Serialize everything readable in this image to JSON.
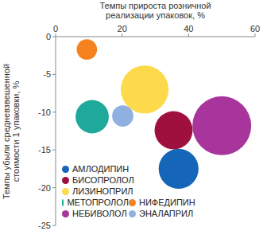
{
  "chart_data": {
    "type": "scatter",
    "x_label": "Темпы прироста розничной реализации упаковок, %",
    "y_label": "Темпы убыли средневзвешенной стоимости 1 упаковки, %",
    "xlim": [
      0,
      60
    ],
    "xticks": [
      0,
      20,
      40,
      60
    ],
    "ylim": [
      -25,
      0
    ],
    "yticks": [
      0,
      -5,
      -10,
      -15,
      -20,
      -25
    ],
    "grid": false,
    "legend": "lower left",
    "series": [
      {
        "name": "АМЛОДИПИН",
        "color": "#1565b8",
        "x": [
          37
        ],
        "y": [
          -17.5
        ],
        "size": [
          46
        ]
      },
      {
        "name": "БИСОПРОЛОЛ",
        "color": "#a0103f",
        "x": [
          35.5
        ],
        "y": [
          -12.4
        ],
        "size": [
          42
        ]
      },
      {
        "name": "ЛИЗИНОПРИЛ",
        "color": "#fdd94c",
        "x": [
          26.8
        ],
        "y": [
          -7
        ],
        "size": [
          66
        ]
      },
      {
        "name": "МЕТОПРОЛОЛ",
        "color": "#1ea99a",
        "x": [
          11
        ],
        "y": [
          -10.6
        ],
        "size": [
          32
        ]
      },
      {
        "name": "НИФЕДИПИН",
        "color": "#f5821f",
        "x": [
          9.4
        ],
        "y": [
          -1.7
        ],
        "size": [
          12
        ]
      },
      {
        "name": "НЕБИВОЛОЛ",
        "color": "#a8359c",
        "x": [
          50
        ],
        "y": [
          -11.8
        ],
        "size": [
          100
        ]
      },
      {
        "name": "ЭНАЛАПРИЛ",
        "color": "#8fb0e0",
        "x": [
          20.2
        ],
        "y": [
          -10.5
        ],
        "size": [
          13
        ]
      }
    ]
  }
}
